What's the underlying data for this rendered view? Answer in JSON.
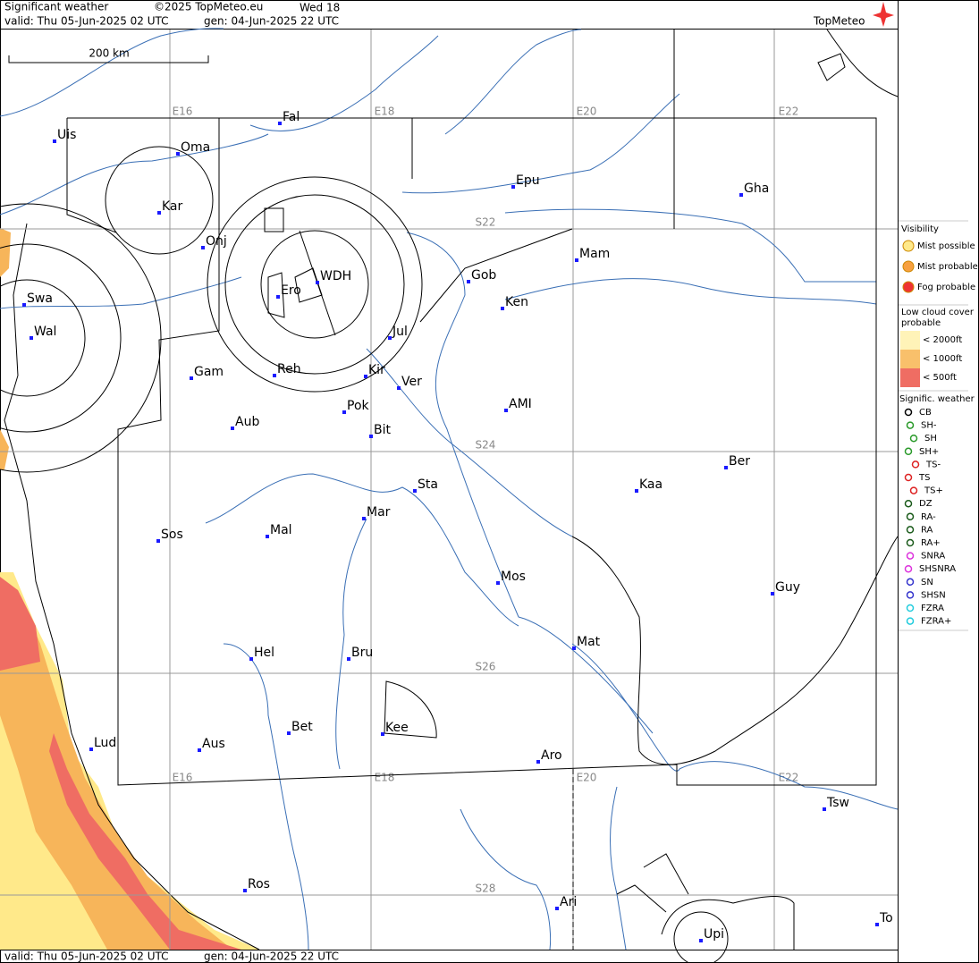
{
  "header": {
    "title": "Significant weather",
    "copyright": "©2025 TopMeteo.eu",
    "run": "Wed 18",
    "valid": "valid:  Thu  05-Jun-2025  02 UTC",
    "gen": "gen:  04-Jun-2025 22 UTC",
    "logo": "TopMeteo"
  },
  "map": {
    "scale": "200 km",
    "grid_labels": [
      "E16",
      "E18",
      "E20",
      "E22",
      "E16",
      "E18",
      "E20",
      "E22",
      "S22",
      "S24",
      "S26",
      "S28"
    ],
    "cities": [
      "Uis",
      "Fal",
      "Oma",
      "Kar",
      "Epu",
      "Gha",
      "Onj",
      "Swa",
      "Wal",
      "WDH",
      "Ero",
      "Gob",
      "Mam",
      "Ken",
      "Jul",
      "Gam",
      "Reh",
      "Kir",
      "Ver",
      "Pok",
      "AMI",
      "Aub",
      "Bit",
      "Ber",
      "Sta",
      "Kaa",
      "Mar",
      "Sos",
      "Mal",
      "Mos",
      "Guy",
      "Mat",
      "Hel",
      "Bru",
      "Bet",
      "Kee",
      "Lud",
      "Aus",
      "Aro",
      "Tsw",
      "Ros",
      "Ari",
      "Upi",
      "To"
    ]
  },
  "legend": {
    "visibility": {
      "title": "Visibility",
      "items": [
        "Mist possible",
        "Mist probable",
        "Fog probable"
      ]
    },
    "low_cloud": {
      "title": "Low cloud cover probable",
      "items": [
        "< 2000ft",
        "< 1000ft",
        "<   500ft"
      ]
    },
    "sigwx": {
      "title": "Signific. weather",
      "items": [
        "CB",
        "SH-",
        "SH",
        "SH+",
        "TS-",
        "TS",
        "TS+",
        "DZ",
        "RA-",
        "RA",
        "RA+",
        "SNRA",
        "SHSNRA",
        "SN",
        "SHSN",
        "FZRA",
        "FZRA+"
      ]
    }
  },
  "footer": {
    "valid": "valid:  Thu  05-Jun-2025  02 UTC",
    "gen": "gen:  04-Jun-2025 22 UTC"
  }
}
